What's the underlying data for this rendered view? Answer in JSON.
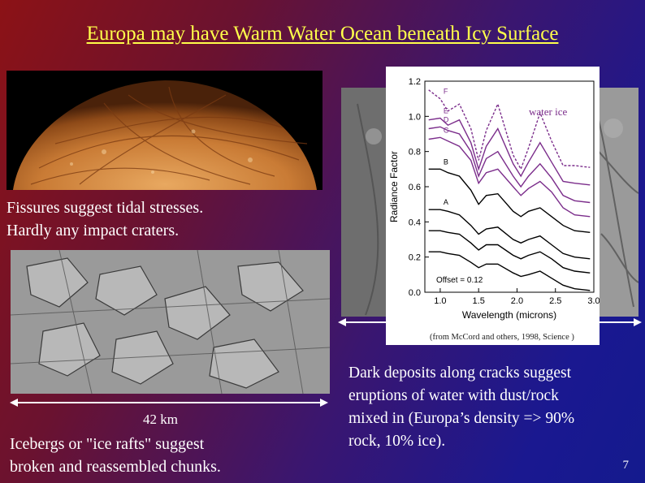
{
  "slide": {
    "title": "Europa may have Warm Water Ocean beneath Icy Surface",
    "caption_fissures": [
      "Fissures suggest tidal stresses.",
      "Hardly any impact craters."
    ],
    "scale_label": "42 km",
    "caption_icebergs": [
      "Icebergs or \"ice rafts\" suggest",
      "broken and reassembled chunks."
    ],
    "caption_dark_deposits": [
      "Dark deposits along cracks suggest",
      "eruptions of water with dust/rock",
      "mixed in (Europa’s density => 90%",
      "rock, 10% ice)."
    ],
    "page_number": "7"
  },
  "chart_data": {
    "type": "line",
    "xlabel": "Wavelength (microns)",
    "ylabel": "Radiance Factor",
    "xlim": [
      0.8,
      3.0
    ],
    "ylim": [
      0.0,
      1.2
    ],
    "xticks": [
      "1.0",
      "1.5",
      "2.0",
      "2.5",
      "3.0"
    ],
    "yticks": [
      "0.0",
      "0.2",
      "0.4",
      "0.6",
      "0.8",
      "1.0",
      "1.2"
    ],
    "annotations": [
      "Offset = 0.12",
      "water ice"
    ],
    "source_note": "(from McCord and others, 1998, Science )",
    "series": [
      {
        "name": "F",
        "style": "dashed",
        "color": "#7b2d8b",
        "x": [
          0.85,
          1.0,
          1.1,
          1.25,
          1.4,
          1.5,
          1.6,
          1.75,
          1.95,
          2.05,
          2.15,
          2.3,
          2.45,
          2.6,
          2.75,
          2.95
        ],
        "y": [
          1.15,
          1.1,
          1.03,
          1.07,
          0.93,
          0.75,
          0.92,
          1.07,
          0.78,
          0.7,
          0.82,
          1.02,
          0.86,
          0.72,
          0.72,
          0.71
        ]
      },
      {
        "name": "E",
        "style": "solid",
        "color": "#7b2d8b",
        "x": [
          0.85,
          1.0,
          1.1,
          1.25,
          1.4,
          1.5,
          1.6,
          1.75,
          1.95,
          2.05,
          2.15,
          2.3,
          2.45,
          2.6,
          2.75,
          2.95
        ],
        "y": [
          0.98,
          0.99,
          0.95,
          0.98,
          0.85,
          0.7,
          0.83,
          0.93,
          0.73,
          0.66,
          0.74,
          0.85,
          0.74,
          0.63,
          0.62,
          0.61
        ]
      },
      {
        "name": "D",
        "style": "solid",
        "color": "#7b2d8b",
        "x": [
          0.85,
          1.0,
          1.1,
          1.25,
          1.4,
          1.5,
          1.6,
          1.75,
          1.95,
          2.05,
          2.15,
          2.3,
          2.45,
          2.6,
          2.75,
          2.95
        ],
        "y": [
          0.93,
          0.94,
          0.92,
          0.9,
          0.8,
          0.66,
          0.76,
          0.8,
          0.66,
          0.6,
          0.66,
          0.73,
          0.65,
          0.55,
          0.52,
          0.51
        ]
      },
      {
        "name": "C",
        "style": "solid",
        "color": "#7b2d8b",
        "x": [
          0.85,
          1.0,
          1.1,
          1.25,
          1.4,
          1.5,
          1.6,
          1.75,
          1.95,
          2.05,
          2.15,
          2.3,
          2.45,
          2.6,
          2.75,
          2.95
        ],
        "y": [
          0.87,
          0.88,
          0.86,
          0.83,
          0.75,
          0.62,
          0.68,
          0.7,
          0.6,
          0.55,
          0.59,
          0.63,
          0.57,
          0.48,
          0.44,
          0.43
        ]
      },
      {
        "name": "B",
        "style": "solid",
        "color": "#000000",
        "x": [
          0.85,
          1.0,
          1.1,
          1.25,
          1.4,
          1.5,
          1.6,
          1.75,
          1.95,
          2.05,
          2.15,
          2.3,
          2.45,
          2.6,
          2.75,
          2.95
        ],
        "y": [
          0.7,
          0.7,
          0.68,
          0.66,
          0.58,
          0.5,
          0.55,
          0.56,
          0.46,
          0.43,
          0.46,
          0.48,
          0.43,
          0.38,
          0.35,
          0.34
        ]
      },
      {
        "name": "A",
        "style": "solid",
        "color": "#000000",
        "x": [
          0.85,
          1.0,
          1.1,
          1.25,
          1.4,
          1.5,
          1.6,
          1.75,
          1.95,
          2.05,
          2.15,
          2.3,
          2.45,
          2.6,
          2.75,
          2.95
        ],
        "y": [
          0.47,
          0.47,
          0.46,
          0.44,
          0.38,
          0.33,
          0.36,
          0.37,
          0.3,
          0.28,
          0.3,
          0.32,
          0.27,
          0.22,
          0.2,
          0.19
        ]
      },
      {
        "name": "",
        "style": "solid",
        "color": "#000000",
        "x": [
          0.85,
          1.0,
          1.1,
          1.25,
          1.4,
          1.5,
          1.6,
          1.75,
          1.95,
          2.05,
          2.15,
          2.3,
          2.45,
          2.6,
          2.75,
          2.95
        ],
        "y": [
          0.35,
          0.35,
          0.34,
          0.33,
          0.28,
          0.24,
          0.27,
          0.27,
          0.21,
          0.19,
          0.21,
          0.23,
          0.19,
          0.14,
          0.12,
          0.11
        ]
      },
      {
        "name": "",
        "style": "solid",
        "color": "#000000",
        "x": [
          0.85,
          1.0,
          1.1,
          1.25,
          1.4,
          1.5,
          1.6,
          1.75,
          1.95,
          2.05,
          2.15,
          2.3,
          2.45,
          2.6,
          2.75,
          2.95
        ],
        "y": [
          0.23,
          0.23,
          0.22,
          0.21,
          0.17,
          0.14,
          0.16,
          0.16,
          0.11,
          0.09,
          0.1,
          0.12,
          0.08,
          0.04,
          0.02,
          0.01
        ]
      }
    ]
  }
}
